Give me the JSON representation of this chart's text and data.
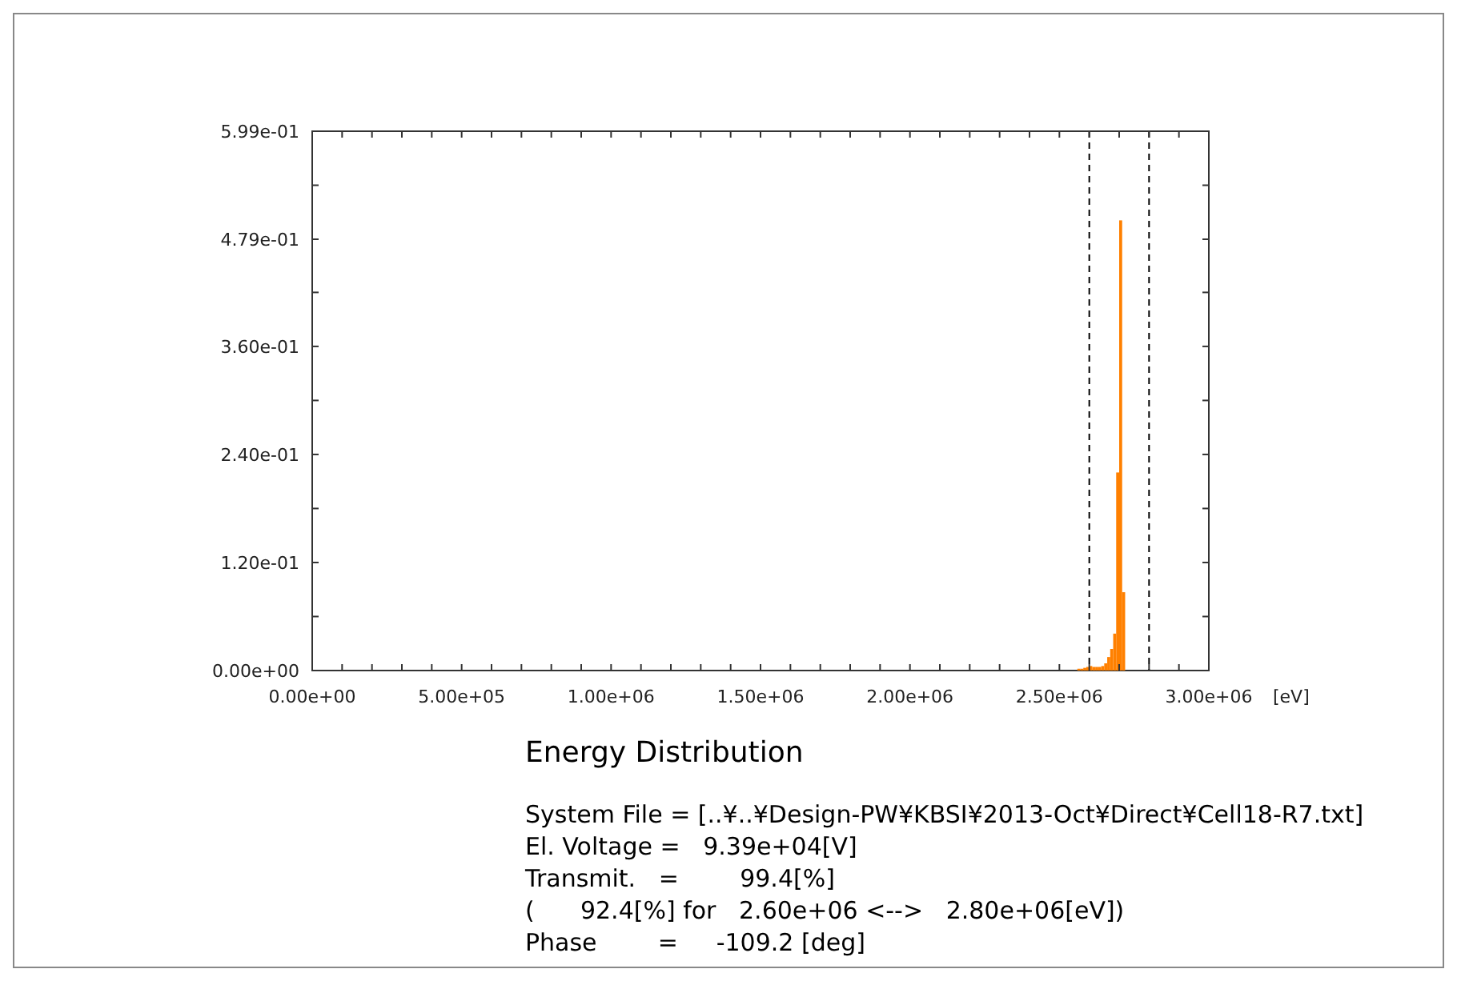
{
  "chart_data": {
    "type": "histogram",
    "title": "Energy Distribution",
    "xlabel": "[eV]",
    "bins": [
      2560000,
      2570000,
      2580000,
      2590000,
      2600000,
      2610000,
      2620000,
      2630000,
      2640000,
      2650000,
      2660000,
      2670000,
      2680000,
      2690000,
      2700000,
      2710000,
      2720000
    ],
    "values": [
      0.002,
      0.002,
      0.003,
      0.004,
      0.005,
      0.004,
      0.004,
      0.004,
      0.005,
      0.008,
      0.015,
      0.024,
      0.041,
      0.22,
      0.5,
      0.087
    ],
    "color": "#ff8000",
    "xlim": [
      0,
      3000000
    ],
    "xticks": [
      {
        "value": 0,
        "label": "0.00e+00"
      },
      {
        "value": 100000,
        "label": null
      },
      {
        "value": 200000,
        "label": null
      },
      {
        "value": 300000,
        "label": null
      },
      {
        "value": 400000,
        "label": null
      },
      {
        "value": 500000,
        "label": "5.00e+05"
      },
      {
        "value": 600000,
        "label": null
      },
      {
        "value": 700000,
        "label": null
      },
      {
        "value": 800000,
        "label": null
      },
      {
        "value": 900000,
        "label": null
      },
      {
        "value": 1000000,
        "label": "1.00e+06"
      },
      {
        "value": 1100000,
        "label": null
      },
      {
        "value": 1200000,
        "label": null
      },
      {
        "value": 1300000,
        "label": null
      },
      {
        "value": 1400000,
        "label": null
      },
      {
        "value": 1500000,
        "label": "1.50e+06"
      },
      {
        "value": 1600000,
        "label": null
      },
      {
        "value": 1700000,
        "label": null
      },
      {
        "value": 1800000,
        "label": null
      },
      {
        "value": 1900000,
        "label": null
      },
      {
        "value": 2000000,
        "label": "2.00e+06"
      },
      {
        "value": 2100000,
        "label": null
      },
      {
        "value": 2200000,
        "label": null
      },
      {
        "value": 2300000,
        "label": null
      },
      {
        "value": 2400000,
        "label": null
      },
      {
        "value": 2500000,
        "label": "2.50e+06"
      },
      {
        "value": 2600000,
        "label": null
      },
      {
        "value": 2700000,
        "label": null
      },
      {
        "value": 2800000,
        "label": null
      },
      {
        "value": 2900000,
        "label": null
      },
      {
        "value": 3000000,
        "label": "3.00e+06"
      }
    ],
    "ylim": [
      0,
      0.599
    ],
    "yticks": [
      {
        "value": 0,
        "label": "0.00e+00"
      },
      {
        "value": 0.06,
        "label": null
      },
      {
        "value": 0.12,
        "label": "1.20e-01"
      },
      {
        "value": 0.18,
        "label": null
      },
      {
        "value": 0.24,
        "label": "2.40e-01"
      },
      {
        "value": 0.3,
        "label": null
      },
      {
        "value": 0.36,
        "label": "3.60e-01"
      },
      {
        "value": 0.42,
        "label": null
      },
      {
        "value": 0.479,
        "label": "4.79e-01"
      },
      {
        "value": 0.539,
        "label": null
      },
      {
        "value": 0.599,
        "label": "5.99e-01"
      }
    ],
    "ref_lines": [
      {
        "axis": "x",
        "value": 2600000,
        "line_style": "dashed",
        "color": "#000000"
      },
      {
        "axis": "x",
        "value": 2800000,
        "line_style": "dashed",
        "color": "#000000"
      }
    ],
    "annotations": [
      "System File = [..¥..¥Design-PW¥KBSI¥2013-Oct¥Direct¥Cell18-R7.txt]",
      "El. Voltage =   9.39e+04[V]",
      "Transmit.   =        99.4[%]",
      "(      92.4[%] for   2.60e+06 <-->   2.80e+06[eV])",
      "Phase        =     -109.2 [deg]"
    ]
  }
}
